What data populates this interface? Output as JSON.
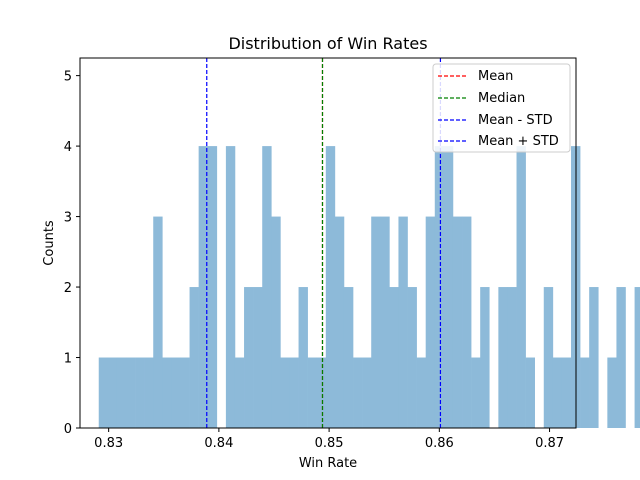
{
  "chart_data": {
    "type": "bar",
    "title": "Distribution of Win Rates",
    "xlabel": "Win Rate",
    "ylabel": "Counts",
    "xlim": [
      0.8274,
      0.8724
    ],
    "ylim": [
      0,
      5.25
    ],
    "xticks": [
      0.83,
      0.84,
      0.85,
      0.86,
      0.87
    ],
    "xtick_labels": [
      "0.83",
      "0.84",
      "0.85",
      "0.86",
      "0.87"
    ],
    "yticks": [
      0,
      1,
      2,
      3,
      4,
      5
    ],
    "ytick_labels": [
      "0",
      "1",
      "2",
      "3",
      "4",
      "5"
    ],
    "grid": false,
    "legend_position": "top-right",
    "bar_color": "#8dbad9",
    "bins": {
      "start": 0.8291,
      "width": 0.000824,
      "counts": [
        1,
        1,
        1,
        1,
        1,
        1,
        3,
        1,
        1,
        1,
        2,
        4,
        4,
        0,
        4,
        1,
        2,
        2,
        4,
        3,
        1,
        1,
        2,
        1,
        1,
        4,
        3,
        2,
        1,
        1,
        3,
        3,
        2,
        3,
        2,
        1,
        3,
        4,
        4,
        3,
        3,
        1,
        2,
        0,
        2,
        2,
        4,
        1,
        0,
        2,
        1,
        1,
        4,
        1,
        2,
        0,
        1,
        2,
        0,
        2
      ]
    },
    "lines": [
      {
        "name": "Mean",
        "x": 0.8494,
        "color": "#ff0000"
      },
      {
        "name": "Median",
        "x": 0.8494,
        "color": "#008000"
      },
      {
        "name": "Mean - STD",
        "x": 0.8389,
        "color": "#0000ff"
      },
      {
        "name": "Mean + STD",
        "x": 0.8601,
        "color": "#0000ff"
      }
    ]
  }
}
